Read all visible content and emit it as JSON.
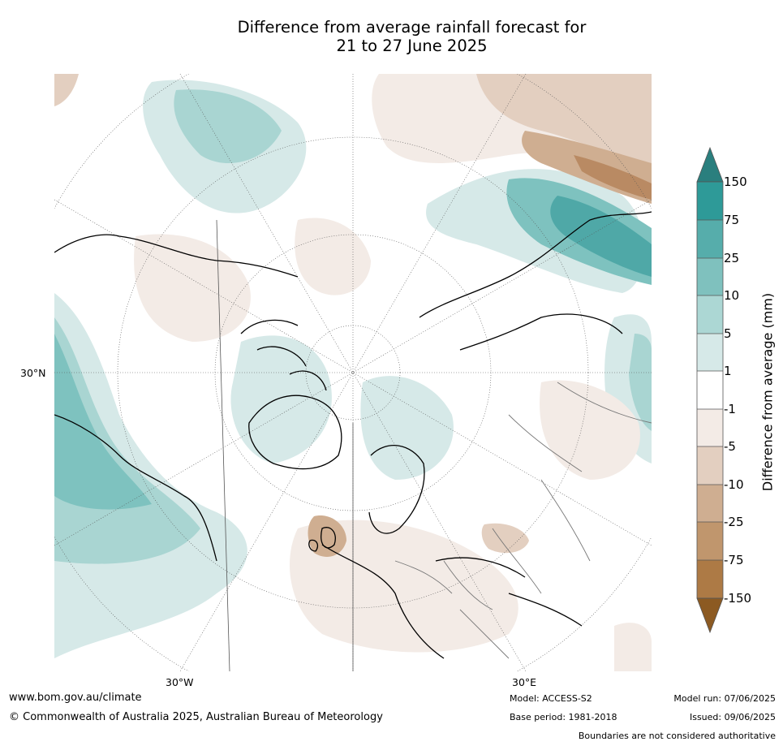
{
  "title_line1": "Difference from average rainfall forecast for",
  "title_line2": "21 to 27 June 2025",
  "map": {
    "lon_labels": [
      "30°W",
      "30°E"
    ],
    "lat_label": "30°N",
    "fill_colors": {
      "land_outline": "#000000",
      "border_grey": "#777777",
      "wet_light": "#d6e9e8",
      "wet_mid": "#a9d5d2",
      "wet_strong": "#7ec2bf",
      "wet_deep": "#4fa8a7",
      "dry_light": "#f3ebe6",
      "dry_mid": "#e3cfc0",
      "dry_strong": "#cfae91",
      "dry_deep": "#b98a63"
    }
  },
  "colorbar": {
    "label": "Difference from average (mm)",
    "ticks": [
      "150",
      "75",
      "25",
      "10",
      "5",
      "1",
      "-1",
      "-5",
      "-10",
      "-25",
      "-75",
      "-150"
    ],
    "colors": [
      "#2a7f7e",
      "#2e9a98",
      "#56adab",
      "#7fc1be",
      "#acd7d4",
      "#d6e9e8",
      "#ffffff",
      "#f3ebe6",
      "#e3cfc0",
      "#cfae91",
      "#c0966d",
      "#ad7a45",
      "#8c5a22"
    ]
  },
  "footer": {
    "website": "www.bom.gov.au/climate",
    "copyright": "© Commonwealth of Australia 2025, Australian Bureau of Meteorology",
    "model": "Model: ACCESS-S2",
    "base_period": "Base period: 1981-2018",
    "model_run": "Model run: 07/06/2025",
    "issued": "Issued: 09/06/2025",
    "disclaimer": "Boundaries are not considered authoritative"
  }
}
